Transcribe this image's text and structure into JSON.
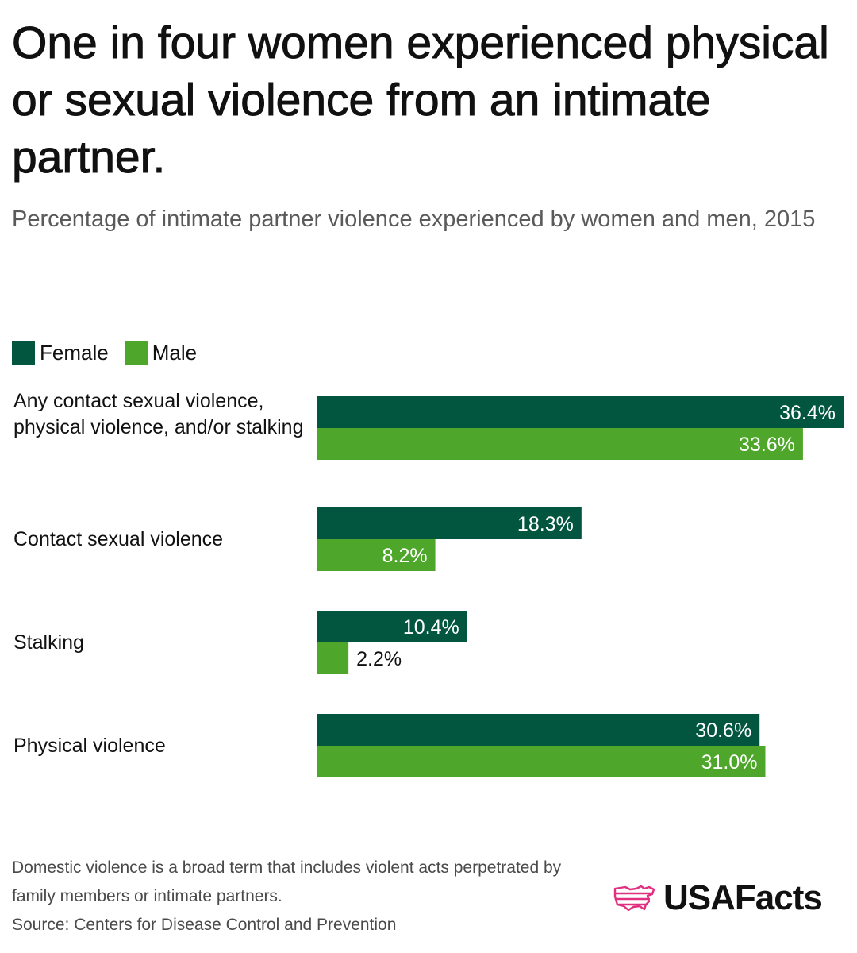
{
  "title": "One in four women experienced physical or sexual violence from an intimate partner.",
  "subtitle": "Percentage of intimate partner violence experienced by women and men, 2015",
  "legend": [
    {
      "label": "Female",
      "color": "#02553f"
    },
    {
      "label": "Male",
      "color": "#4ea72a"
    }
  ],
  "chart_data": {
    "type": "bar",
    "orientation": "horizontal",
    "categories": [
      "Any contact sexual violence, physical violence, and/or stalking",
      "Contact sexual violence",
      "Stalking",
      "Physical violence"
    ],
    "series": [
      {
        "name": "Female",
        "color": "#02553f",
        "values": [
          36.4,
          18.3,
          10.4,
          30.6
        ]
      },
      {
        "name": "Male",
        "color": "#4ea72a",
        "values": [
          33.6,
          8.2,
          2.2,
          31.0
        ]
      }
    ],
    "data_labels": [
      [
        "36.4%",
        "18.3%",
        "10.4%",
        "30.6%"
      ],
      [
        "33.6%",
        "8.2%",
        "2.2%",
        "31.0%"
      ]
    ],
    "value_axis_visible": false,
    "grid": false,
    "legend_position": "top-left"
  },
  "footnote": {
    "note": "Domestic violence is a broad term that includes violent acts perpetrated by family members or intimate partners.",
    "source": "Source: Centers for Disease Control and Prevention"
  },
  "logo": {
    "text": "USAFacts",
    "icon": "usa-map-icon",
    "color": "#e0307f"
  }
}
